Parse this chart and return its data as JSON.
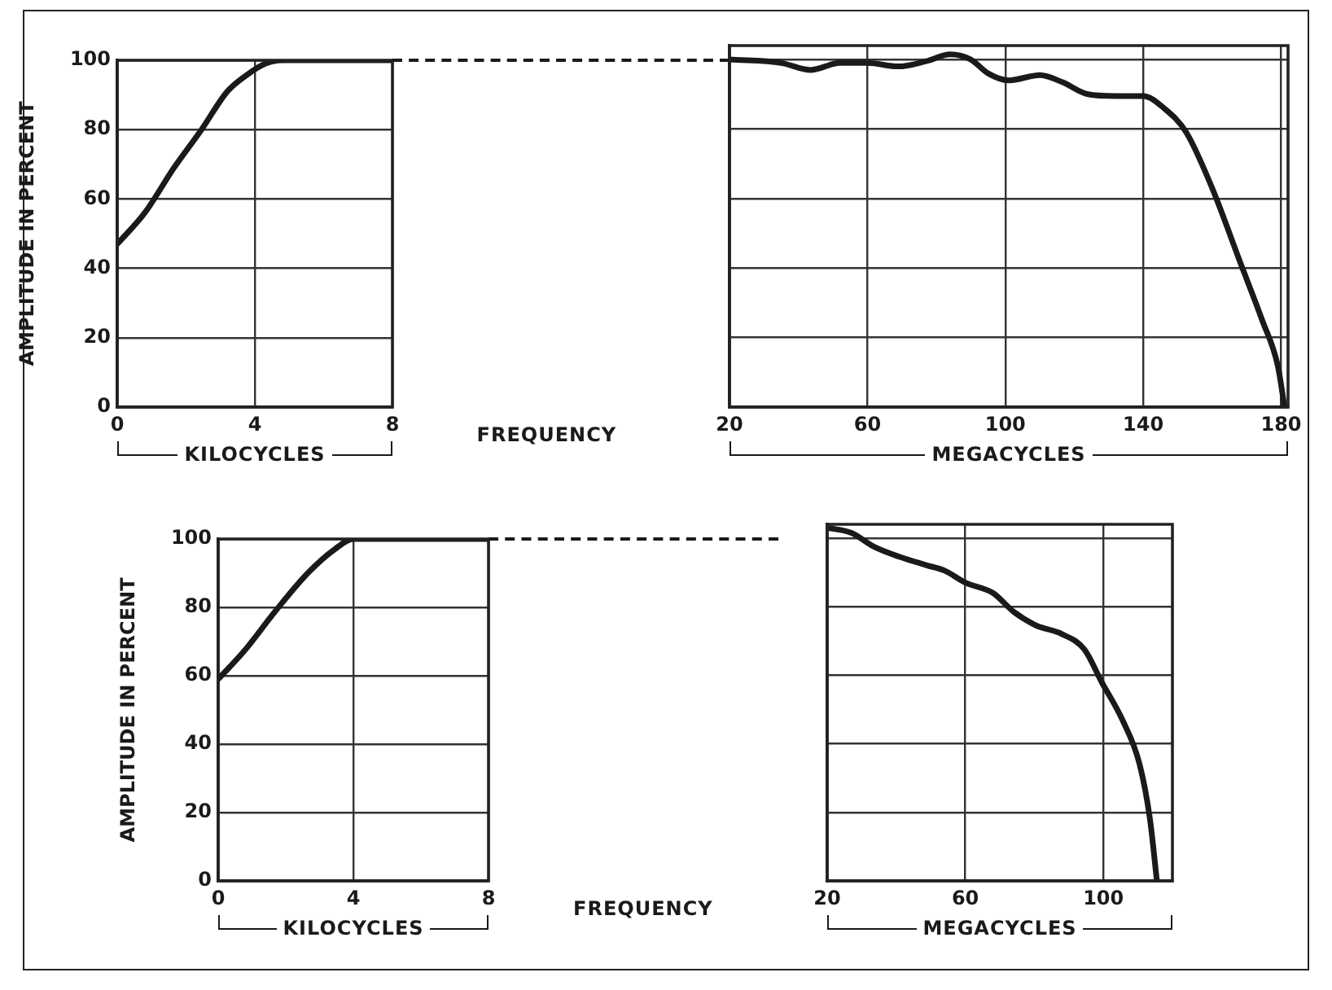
{
  "chart_data": [
    {
      "type": "line",
      "ylabel": "AMPLITUDE IN PERCENT",
      "xlabel": "KILOCYCLES",
      "annotations": [
        "FREQUENCY"
      ],
      "color": "#1a1a1a",
      "grid": true,
      "xlim": [
        0,
        8
      ],
      "xticks": [
        0,
        4,
        8
      ],
      "ylim": [
        0,
        100
      ],
      "yticks": [
        0,
        20,
        40,
        60,
        80,
        100
      ],
      "x": [
        0,
        0.8,
        1.65,
        2.45,
        3.2,
        3.8,
        4.3,
        4.8,
        8
      ],
      "values": [
        47,
        56,
        69,
        80,
        91,
        96,
        99,
        100,
        100
      ]
    },
    {
      "type": "line",
      "xlabel": "MEGACYCLES",
      "tick_labels": "x",
      "color": "#1a1a1a",
      "grid": true,
      "xlim": [
        20,
        182
      ],
      "xticks": [
        20,
        60,
        100,
        140,
        180
      ],
      "ylim": [
        0,
        104
      ],
      "yticks": [
        0,
        20,
        40,
        60,
        80,
        100
      ],
      "x": [
        20,
        35,
        43.5,
        52,
        60,
        69,
        77,
        84,
        90,
        95,
        101,
        110,
        116.5,
        124,
        132,
        140,
        146,
        152.5,
        160,
        168,
        174.5,
        179,
        181
      ],
      "values": [
        100,
        99,
        97,
        99,
        99,
        98,
        99.5,
        101.5,
        100,
        96,
        94,
        95.5,
        93.5,
        90,
        89.5,
        89.5,
        86,
        79,
        63,
        42,
        25,
        12,
        0
      ]
    },
    {
      "type": "line",
      "ylabel": "AMPLITUDE IN PERCENT",
      "xlabel": "KILOCYCLES",
      "annotations": [
        "FREQUENCY"
      ],
      "color": "#1a1a1a",
      "grid": true,
      "xlim": [
        0,
        8
      ],
      "xticks": [
        0,
        4,
        8
      ],
      "ylim": [
        0,
        100
      ],
      "yticks": [
        0,
        20,
        40,
        60,
        80,
        100
      ],
      "x": [
        0,
        0.75,
        1.7,
        2.65,
        3.45,
        4,
        8
      ],
      "values": [
        59,
        67,
        79,
        90,
        97,
        100,
        100
      ]
    },
    {
      "type": "line",
      "xlabel": "MEGACYCLES",
      "tick_labels": "x",
      "color": "#1a1a1a",
      "grid": true,
      "xlim": [
        20,
        120
      ],
      "xticks": [
        20,
        60,
        100
      ],
      "ylim": [
        0,
        104
      ],
      "yticks": [
        0,
        20,
        40,
        60,
        80,
        100
      ],
      "x": [
        20,
        27,
        33.5,
        41,
        49,
        54,
        60,
        68,
        74,
        80.5,
        88,
        94.5,
        99.5,
        105.5,
        110.5,
        113.5,
        115.5
      ],
      "values": [
        103,
        101.5,
        97.5,
        94.5,
        92,
        90.5,
        87,
        84,
        78.5,
        74.5,
        72,
        67.5,
        58,
        47,
        34,
        18,
        0
      ]
    }
  ]
}
